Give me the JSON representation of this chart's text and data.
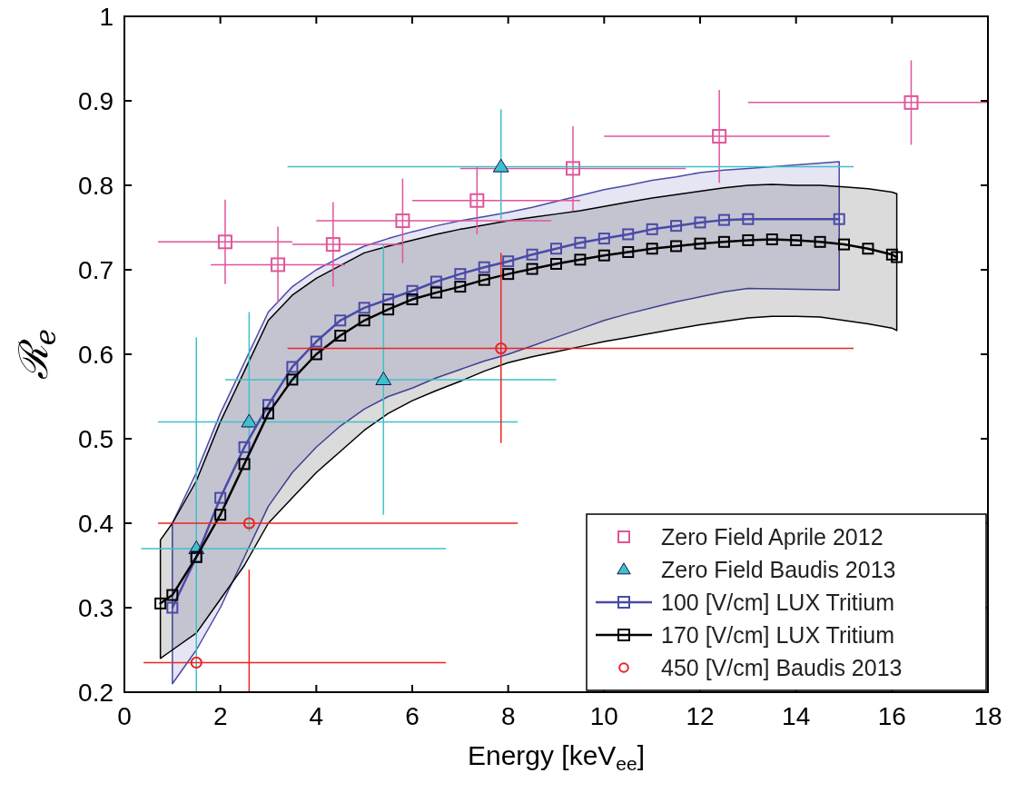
{
  "chart_data": {
    "type": "scatter",
    "xlabel": "Energy [keV$_{ee}$]",
    "ylabel": "ℛ$_{e}$",
    "xlim": [
      0,
      18
    ],
    "xticks": [
      0,
      2,
      4,
      6,
      8,
      10,
      12,
      14,
      16,
      18
    ],
    "ylim": [
      0.2,
      1
    ],
    "yticks": [
      0.2,
      0.3,
      0.4,
      0.5,
      0.6,
      0.7,
      0.8,
      0.9,
      1
    ],
    "grid": false,
    "legend": "bottom right",
    "series": [
      {
        "name": "Zero Field Aprile 2012",
        "marker": "square",
        "color": "#e0559a",
        "x": [
          2.1,
          3.2,
          4.35,
          5.8,
          7.35,
          9.35,
          12.4,
          16.4
        ],
        "values": [
          0.733,
          0.706,
          0.73,
          0.758,
          0.782,
          0.82,
          0.858,
          0.898
        ],
        "xerrors": [
          [
            0.7,
            3.5
          ],
          [
            1.8,
            4.6
          ],
          [
            3.5,
            5.8
          ],
          [
            4.0,
            8.9
          ],
          [
            6.0,
            9.5
          ],
          [
            7.0,
            11.7
          ],
          [
            10.0,
            14.7
          ],
          [
            13.0,
            18
          ]
        ],
        "errors": [
          0.05,
          0.045,
          0.05,
          0.05,
          0.04,
          0.05,
          0.055,
          0.05
        ]
      },
      {
        "name": "Zero Field Baudis 2013",
        "marker": "triangle",
        "color": "#40c0c8",
        "x": [
          1.5,
          2.6,
          5.4,
          7.85
        ],
        "values": [
          0.37,
          0.52,
          0.57,
          0.822
        ],
        "xerrors": [
          [
            0.35,
            6.7
          ],
          [
            0.7,
            8.2
          ],
          [
            2.1,
            9.0
          ],
          [
            3.4,
            15.2
          ]
        ],
        "errors": [
          [
            0.2,
            0.62
          ],
          [
            0.39,
            0.65
          ],
          [
            0.41,
            0.73
          ],
          [
            0.76,
            0.89
          ]
        ]
      },
      {
        "name": "100 [V/cm] LUX Tritium",
        "type": "line",
        "marker": "square",
        "color": "#4a4aa8",
        "x": [
          1,
          1.5,
          2,
          2.5,
          3,
          3.5,
          4,
          4.5,
          5,
          5.5,
          6,
          6.5,
          7,
          7.5,
          8,
          8.5,
          9,
          9.5,
          10,
          10.5,
          11,
          11.5,
          12,
          12.5,
          13,
          14.9
        ],
        "values": [
          0.3,
          0.36,
          0.43,
          0.49,
          0.54,
          0.585,
          0.615,
          0.64,
          0.655,
          0.665,
          0.675,
          0.686,
          0.695,
          0.703,
          0.71,
          0.718,
          0.725,
          0.732,
          0.737,
          0.742,
          0.748,
          0.752,
          0.756,
          0.759,
          0.76,
          0.76
        ],
        "upper": [
          0.4,
          0.46,
          0.53,
          0.59,
          0.65,
          0.68,
          0.7,
          0.715,
          0.728,
          0.737,
          0.745,
          0.752,
          0.758,
          0.763,
          0.768,
          0.774,
          0.781,
          0.788,
          0.795,
          0.8,
          0.806,
          0.81,
          0.815,
          0.818,
          0.82,
          0.828
        ],
        "lower": [
          0.21,
          0.25,
          0.3,
          0.36,
          0.42,
          0.46,
          0.49,
          0.515,
          0.535,
          0.55,
          0.56,
          0.572,
          0.582,
          0.592,
          0.6,
          0.61,
          0.62,
          0.63,
          0.64,
          0.648,
          0.655,
          0.662,
          0.668,
          0.674,
          0.678,
          0.676
        ]
      },
      {
        "name": "170 [V/cm] LUX Tritium",
        "type": "line",
        "marker": "square",
        "color": "#000000",
        "x": [
          0.75,
          1,
          1.5,
          2,
          2.5,
          3,
          3.5,
          4,
          4.5,
          5,
          5.5,
          6,
          6.5,
          7,
          7.5,
          8,
          8.5,
          9,
          9.5,
          10,
          10.5,
          11,
          11.5,
          12,
          12.5,
          13,
          13.5,
          14,
          14.5,
          15,
          15.5,
          16,
          16.1
        ],
        "values": [
          0.305,
          0.315,
          0.36,
          0.41,
          0.47,
          0.53,
          0.57,
          0.6,
          0.622,
          0.64,
          0.653,
          0.665,
          0.673,
          0.68,
          0.688,
          0.695,
          0.701,
          0.707,
          0.712,
          0.717,
          0.721,
          0.725,
          0.728,
          0.731,
          0.733,
          0.735,
          0.736,
          0.735,
          0.733,
          0.73,
          0.725,
          0.718,
          0.715
        ],
        "upper": [
          0.38,
          0.4,
          0.45,
          0.52,
          0.58,
          0.64,
          0.67,
          0.69,
          0.705,
          0.72,
          0.728,
          0.735,
          0.742,
          0.748,
          0.753,
          0.758,
          0.762,
          0.766,
          0.77,
          0.775,
          0.78,
          0.785,
          0.789,
          0.793,
          0.797,
          0.8,
          0.801,
          0.8,
          0.8,
          0.798,
          0.796,
          0.792,
          0.79
        ],
        "lower": [
          0.24,
          0.25,
          0.27,
          0.31,
          0.35,
          0.4,
          0.43,
          0.46,
          0.485,
          0.51,
          0.53,
          0.545,
          0.557,
          0.568,
          0.58,
          0.59,
          0.597,
          0.603,
          0.609,
          0.615,
          0.62,
          0.625,
          0.63,
          0.635,
          0.639,
          0.643,
          0.645,
          0.645,
          0.644,
          0.64,
          0.636,
          0.631,
          0.628
        ]
      },
      {
        "name": "450 [V/cm] Baudis 2013",
        "marker": "circle",
        "color": "#ee2222",
        "x": [
          1.5,
          2.6,
          7.85
        ],
        "values": [
          0.235,
          0.4,
          0.607
        ],
        "xerrors": [
          [
            0.4,
            6.7
          ],
          [
            0.7,
            8.2
          ],
          [
            3.4,
            15.2
          ]
        ],
        "errors": [
          null,
          [
            0.2,
            0.345
          ],
          [
            0.495,
            0.72
          ]
        ]
      }
    ]
  }
}
